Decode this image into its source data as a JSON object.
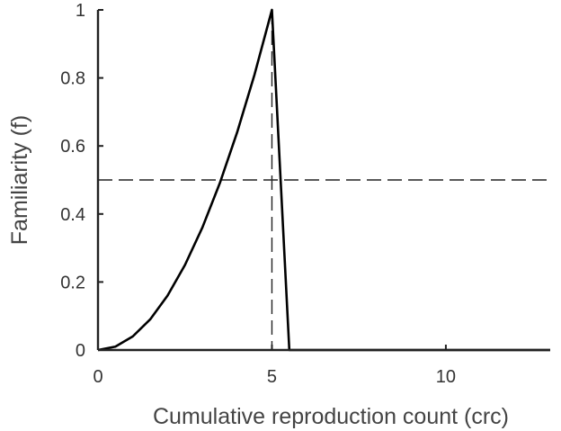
{
  "chart_data": {
    "type": "line",
    "xlabel": "Cumulative reproduction count (crc)",
    "ylabel": "Familiarity (f)",
    "xlim": [
      0,
      13
    ],
    "ylim": [
      0,
      1
    ],
    "xticks": [
      0,
      5,
      10
    ],
    "yticks": [
      0,
      0.2,
      0.4,
      0.6,
      0.8,
      1
    ],
    "x_tick_labels": [
      "0",
      "5",
      "10"
    ],
    "y_tick_labels": [
      "0",
      "0.2",
      "0.4",
      "0.6",
      "0.8",
      "1"
    ],
    "grid": false,
    "series": [
      {
        "x": [
          0,
          0.5,
          1,
          1.5,
          2,
          2.5,
          3,
          3.5,
          4,
          4.5,
          5,
          5.5,
          6,
          6.5,
          7,
          7.5,
          8,
          8.5,
          9,
          9.5,
          10,
          11,
          12,
          13
        ],
        "y": [
          0,
          0.01,
          0.04,
          0.09,
          0.16,
          0.25,
          0.36,
          0.49,
          0.64,
          0.81,
          1,
          0,
          0,
          0,
          0,
          0,
          0,
          0,
          0,
          0,
          0,
          0,
          0,
          0
        ]
      }
    ],
    "reference_lines": [
      {
        "orientation": "vertical",
        "x": 5,
        "style": "dashed"
      },
      {
        "orientation": "horizontal",
        "y": 0.5,
        "style": "dashed"
      }
    ],
    "colors": {
      "line": "#000000",
      "axis": "#222222",
      "text": "#333333"
    }
  }
}
